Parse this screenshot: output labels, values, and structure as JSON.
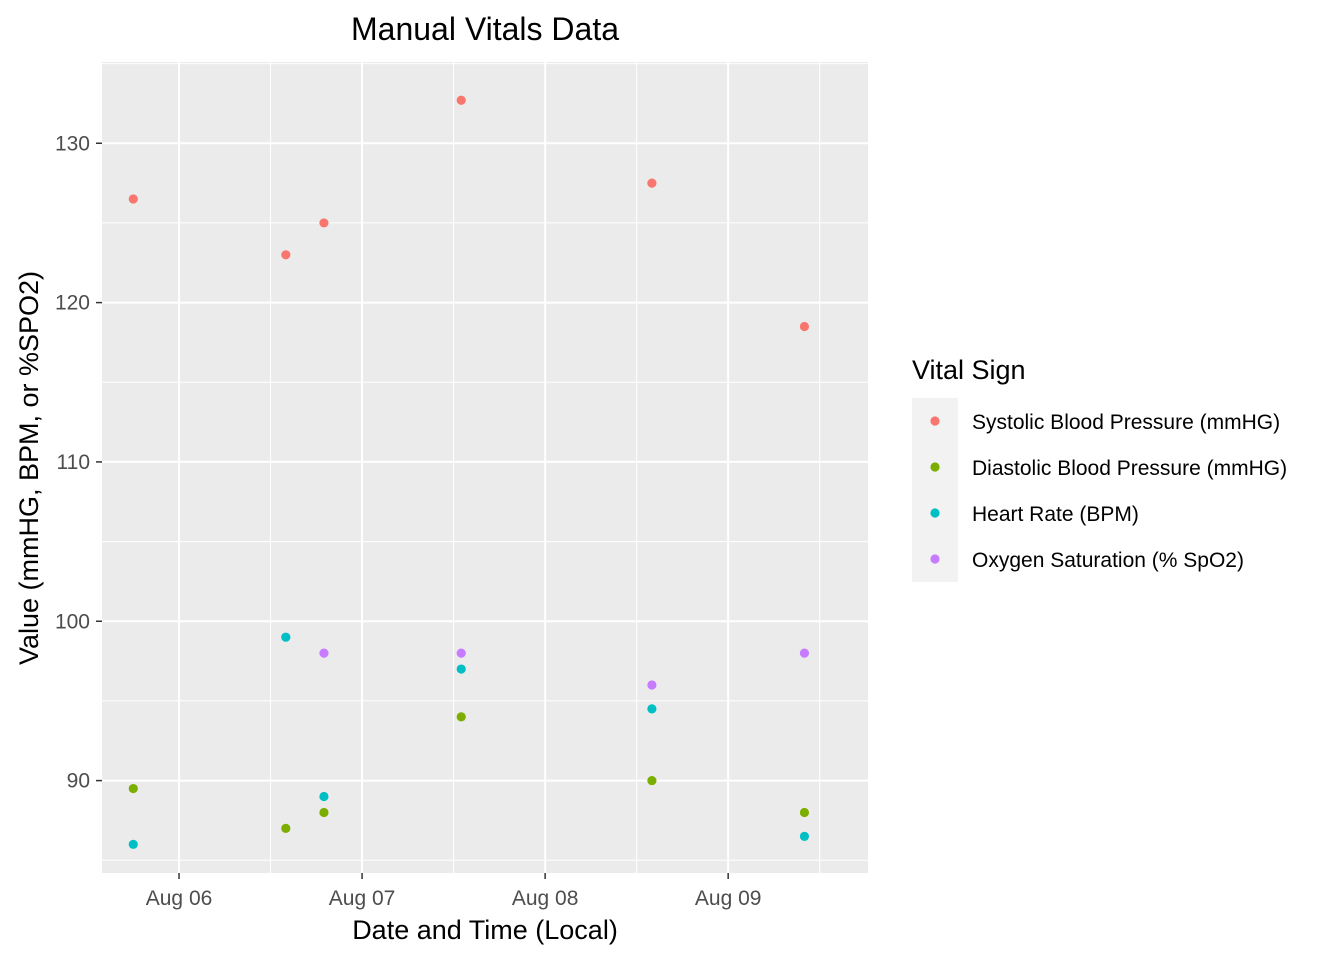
{
  "chart_data": {
    "type": "scatter",
    "title": "Manual Vitals Data",
    "xlabel": "Date and Time (Local)",
    "ylabel": "Value (mmHG, BPM, or %SPO2)",
    "x_axis": {
      "type": "date",
      "range": [
        "2022-08-05 13:54",
        "2022-08-09 18:20"
      ],
      "ticks": [
        {
          "value": "2022-08-06 00:00",
          "label": "Aug 06"
        },
        {
          "value": "2022-08-07 00:00",
          "label": "Aug 07"
        },
        {
          "value": "2022-08-08 00:00",
          "label": "Aug 08"
        },
        {
          "value": "2022-08-09 00:00",
          "label": "Aug 09"
        }
      ]
    },
    "y_axis": {
      "range": [
        84.2,
        135.1
      ],
      "ticks": [
        90,
        100,
        110,
        120,
        130
      ]
    },
    "grid": true,
    "legend_position": "right",
    "legend_title": "Vital Sign",
    "series": [
      {
        "name": "Systolic Blood Pressure (mmHG)",
        "color": "#F8766D",
        "points": [
          {
            "x": "2022-08-05 18:00",
            "y": 126.5
          },
          {
            "x": "2022-08-06 14:00",
            "y": 123
          },
          {
            "x": "2022-08-06 19:00",
            "y": 125
          },
          {
            "x": "2022-08-07 13:00",
            "y": 132.7
          },
          {
            "x": "2022-08-08 14:00",
            "y": 127.5
          },
          {
            "x": "2022-08-09 10:00",
            "y": 118.5
          }
        ]
      },
      {
        "name": "Diastolic Blood Pressure (mmHG)",
        "color": "#7CAE00",
        "points": [
          {
            "x": "2022-08-05 18:00",
            "y": 89.5
          },
          {
            "x": "2022-08-06 14:00",
            "y": 87
          },
          {
            "x": "2022-08-06 19:00",
            "y": 88
          },
          {
            "x": "2022-08-07 13:00",
            "y": 94
          },
          {
            "x": "2022-08-08 14:00",
            "y": 90
          },
          {
            "x": "2022-08-09 10:00",
            "y": 88
          }
        ]
      },
      {
        "name": "Heart Rate (BPM)",
        "color": "#00BFC4",
        "points": [
          {
            "x": "2022-08-05 18:00",
            "y": 86
          },
          {
            "x": "2022-08-06 14:00",
            "y": 99
          },
          {
            "x": "2022-08-06 19:00",
            "y": 89
          },
          {
            "x": "2022-08-07 13:00",
            "y": 97
          },
          {
            "x": "2022-08-08 14:00",
            "y": 94.5
          },
          {
            "x": "2022-08-09 10:00",
            "y": 86.5
          }
        ]
      },
      {
        "name": "Oxygen Saturation (% SpO2)",
        "color": "#C77CFF",
        "points": [
          {
            "x": "2022-08-06 19:00",
            "y": 98
          },
          {
            "x": "2022-08-07 13:00",
            "y": 98
          },
          {
            "x": "2022-08-08 14:00",
            "y": 96
          },
          {
            "x": "2022-08-09 10:00",
            "y": 98
          }
        ]
      }
    ]
  }
}
